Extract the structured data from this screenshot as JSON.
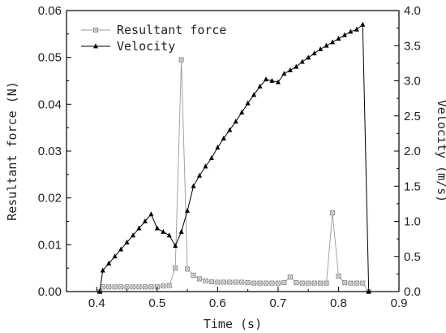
{
  "chart_data": {
    "type": "line",
    "xlabel": "Time (s)",
    "ylabel_left": "Resultant force (N)",
    "ylabel_right": "Velocity (m/s)",
    "xlim": [
      0.35,
      0.9
    ],
    "ylim_left": [
      0,
      0.06
    ],
    "ylim_right": [
      0,
      4.0
    ],
    "x_ticks": [
      "0.4",
      "0.5",
      "0.6",
      "0.7",
      "0.8",
      "0.9"
    ],
    "y_left_ticks": [
      "0.00",
      "0.01",
      "0.02",
      "0.03",
      "0.04",
      "0.05",
      "0.06"
    ],
    "y_right_ticks": [
      "0.0",
      "0.5",
      "1.0",
      "1.5",
      "2.0",
      "2.5",
      "3.0",
      "3.5",
      "4.0"
    ],
    "grid": false,
    "legend_position": "top-left",
    "series": [
      {
        "name": "Resultant force",
        "axis": "left",
        "marker": "square-x",
        "color": "#9a9a9a",
        "points": [
          [
            0.405,
            0.0
          ],
          [
            0.41,
            0.001
          ],
          [
            0.42,
            0.001
          ],
          [
            0.43,
            0.001
          ],
          [
            0.44,
            0.001
          ],
          [
            0.45,
            0.001
          ],
          [
            0.46,
            0.001
          ],
          [
            0.47,
            0.001
          ],
          [
            0.48,
            0.001
          ],
          [
            0.49,
            0.001
          ],
          [
            0.5,
            0.001
          ],
          [
            0.51,
            0.0012
          ],
          [
            0.52,
            0.0013
          ],
          [
            0.53,
            0.005
          ],
          [
            0.54,
            0.0495
          ],
          [
            0.55,
            0.0048
          ],
          [
            0.56,
            0.0035
          ],
          [
            0.57,
            0.0027
          ],
          [
            0.58,
            0.0023
          ],
          [
            0.59,
            0.0021
          ],
          [
            0.6,
            0.002
          ],
          [
            0.61,
            0.002
          ],
          [
            0.62,
            0.002
          ],
          [
            0.63,
            0.002
          ],
          [
            0.64,
            0.002
          ],
          [
            0.65,
            0.0019
          ],
          [
            0.66,
            0.0018
          ],
          [
            0.67,
            0.0018
          ],
          [
            0.68,
            0.0018
          ],
          [
            0.69,
            0.0018
          ],
          [
            0.7,
            0.0018
          ],
          [
            0.71,
            0.0019
          ],
          [
            0.72,
            0.0031
          ],
          [
            0.73,
            0.0019
          ],
          [
            0.74,
            0.0018
          ],
          [
            0.75,
            0.0018
          ],
          [
            0.76,
            0.0018
          ],
          [
            0.77,
            0.0018
          ],
          [
            0.78,
            0.0018
          ],
          [
            0.79,
            0.0168
          ],
          [
            0.8,
            0.0033
          ],
          [
            0.81,
            0.0019
          ],
          [
            0.82,
            0.0018
          ],
          [
            0.83,
            0.0018
          ],
          [
            0.84,
            0.0018
          ],
          [
            0.85,
            0.0
          ]
        ]
      },
      {
        "name": "Velocity",
        "axis": "right",
        "marker": "triangle",
        "color": "#000000",
        "points": [
          [
            0.405,
            0.0
          ],
          [
            0.41,
            0.3
          ],
          [
            0.42,
            0.4
          ],
          [
            0.43,
            0.5
          ],
          [
            0.44,
            0.6
          ],
          [
            0.45,
            0.7
          ],
          [
            0.46,
            0.8
          ],
          [
            0.47,
            0.9
          ],
          [
            0.48,
            1.0
          ],
          [
            0.49,
            1.1
          ],
          [
            0.5,
            0.9
          ],
          [
            0.51,
            0.85
          ],
          [
            0.52,
            0.8
          ],
          [
            0.53,
            0.65
          ],
          [
            0.54,
            0.85
          ],
          [
            0.55,
            1.15
          ],
          [
            0.56,
            1.5
          ],
          [
            0.57,
            1.65
          ],
          [
            0.58,
            1.78
          ],
          [
            0.59,
            1.9
          ],
          [
            0.6,
            2.05
          ],
          [
            0.61,
            2.18
          ],
          [
            0.62,
            2.3
          ],
          [
            0.63,
            2.42
          ],
          [
            0.64,
            2.55
          ],
          [
            0.65,
            2.68
          ],
          [
            0.66,
            2.8
          ],
          [
            0.67,
            2.92
          ],
          [
            0.68,
            3.02
          ],
          [
            0.69,
            3.0
          ],
          [
            0.7,
            2.98
          ],
          [
            0.71,
            3.1
          ],
          [
            0.72,
            3.15
          ],
          [
            0.73,
            3.2
          ],
          [
            0.74,
            3.27
          ],
          [
            0.75,
            3.33
          ],
          [
            0.76,
            3.39
          ],
          [
            0.77,
            3.45
          ],
          [
            0.78,
            3.5
          ],
          [
            0.79,
            3.55
          ],
          [
            0.8,
            3.6
          ],
          [
            0.81,
            3.65
          ],
          [
            0.82,
            3.7
          ],
          [
            0.83,
            3.73
          ],
          [
            0.84,
            3.8
          ],
          [
            0.85,
            0.0
          ]
        ]
      }
    ]
  }
}
